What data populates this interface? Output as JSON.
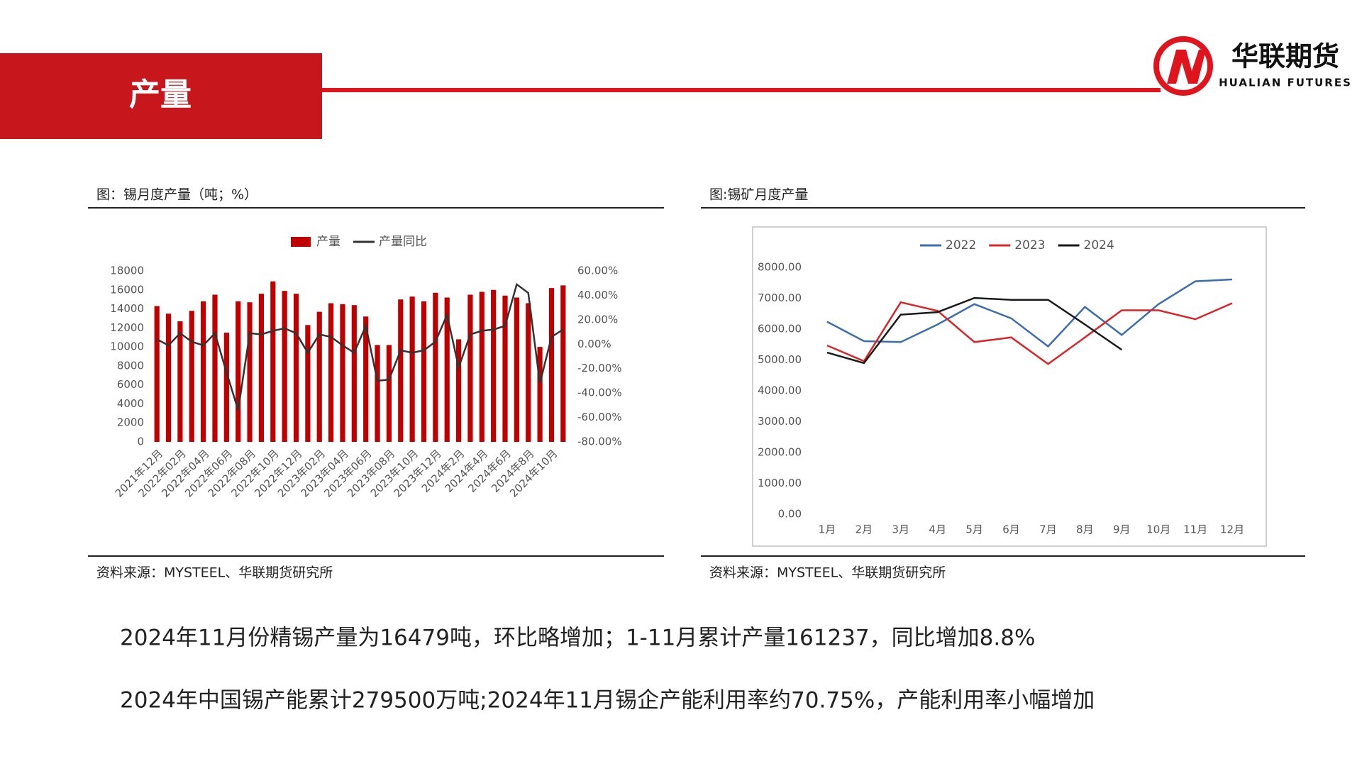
{
  "header": {
    "title": "产量"
  },
  "logo": {
    "name": "华联期货",
    "subtitle": "HUALIAN FUTURES"
  },
  "chart_data": [
    {
      "type": "bar",
      "title": "图：锡月度产量（吨；%）",
      "source": "资料来源：MYSTEEL、华联期货研究所",
      "categories": [
        "2021年12月",
        null,
        "2022年02月",
        null,
        "2022年04月",
        null,
        "2022年06月",
        null,
        "2022年08月",
        null,
        "2022年10月",
        null,
        "2022年12月",
        null,
        "2023年02月",
        null,
        "2023年04月",
        null,
        "2023年06月",
        null,
        "2023年08月",
        null,
        "2023年10月",
        null,
        "2023年12月",
        null,
        "2024年2月",
        null,
        "2024年4月",
        null,
        "2024年6月",
        null,
        "2024年8月",
        null,
        "2024年10月",
        null
      ],
      "series": [
        {
          "name": "产量",
          "color": "#c00000",
          "values": [
            14300,
            13500,
            12700,
            13800,
            14800,
            15500,
            11500,
            14800,
            14700,
            15600,
            16900,
            15900,
            15600,
            12300,
            13700,
            14600,
            14500,
            14400,
            13200,
            10200,
            10200,
            15000,
            15300,
            14800,
            15700,
            15200,
            10800,
            15500,
            15800,
            16000,
            15400,
            15200,
            14600,
            10000,
            16200,
            16479
          ]
        },
        {
          "name": "产量同比",
          "color": "#333333",
          "type": "line",
          "axis": "y2",
          "values": [
            4,
            -1,
            9,
            2,
            -1,
            9,
            -23,
            -54,
            9,
            8,
            11,
            13,
            9,
            -7,
            8,
            6,
            -1,
            -7,
            15,
            -30,
            -29,
            -5,
            -7,
            -5,
            2,
            24,
            -19,
            8,
            11,
            12,
            15,
            49,
            42,
            -32,
            6,
            12
          ]
        }
      ],
      "ylim": [
        0,
        18000
      ],
      "yticks": [
        0,
        2000,
        4000,
        6000,
        8000,
        10000,
        12000,
        14000,
        16000,
        18000
      ],
      "y2lim": [
        -80,
        60
      ],
      "y2ticks": [
        {
          "value": -80,
          "label": "-80.00%"
        },
        {
          "value": -60,
          "label": "-60.00%"
        },
        {
          "value": -40,
          "label": "-40.00%"
        },
        {
          "value": -20,
          "label": "-20.00%"
        },
        {
          "value": 0,
          "label": "0.00%"
        },
        {
          "value": 20,
          "label": "20.00%"
        },
        {
          "value": 40,
          "label": "40.00%"
        },
        {
          "value": 60,
          "label": "60.00%"
        }
      ],
      "grid": false,
      "legend": "top"
    },
    {
      "type": "line",
      "title": "图:锡矿月度产量",
      "source": "资料来源：MYSTEEL、华联期货研究所",
      "categories": [
        "1月",
        "2月",
        "3月",
        "4月",
        "5月",
        "6月",
        "7月",
        "8月",
        "9月",
        "10月",
        "11月",
        "12月"
      ],
      "series": [
        {
          "name": "2022",
          "color": "#3c6db0",
          "values": [
            6240,
            5610,
            5580,
            6150,
            6810,
            6350,
            5440,
            6720,
            5810,
            6810,
            7550,
            7610
          ]
        },
        {
          "name": "2023",
          "color": "#d9262a",
          "values": [
            5470,
            4960,
            6870,
            6590,
            5580,
            5730,
            4870,
            5730,
            6610,
            6610,
            6320,
            6840
          ]
        },
        {
          "name": "2024",
          "color": "#1a1a1a",
          "values": [
            5240,
            4900,
            6470,
            6550,
            7010,
            6950,
            6950,
            6150,
            5330,
            null,
            null,
            null
          ]
        }
      ],
      "ylim": [
        0,
        8000
      ],
      "yticks": [
        {
          "value": 0,
          "label": "0.00"
        },
        {
          "value": 1000,
          "label": "1000.00"
        },
        {
          "value": 2000,
          "label": "2000.00"
        },
        {
          "value": 3000,
          "label": "3000.00"
        },
        {
          "value": 4000,
          "label": "4000.00"
        },
        {
          "value": 5000,
          "label": "5000.00"
        },
        {
          "value": 6000,
          "label": "6000.00"
        },
        {
          "value": 7000,
          "label": "7000.00"
        },
        {
          "value": 8000,
          "label": "8000.00"
        }
      ],
      "grid": false,
      "legend": "top"
    }
  ],
  "paragraphs": [
    "2024年11月份精锡产量为16479吨，环比略增加；1-11月累计产量161237，同比增加8.8%",
    "2024年中国锡产能累计279500万吨;2024年11月锡企产能利用率约70.75%，产能利用率小幅增加"
  ]
}
